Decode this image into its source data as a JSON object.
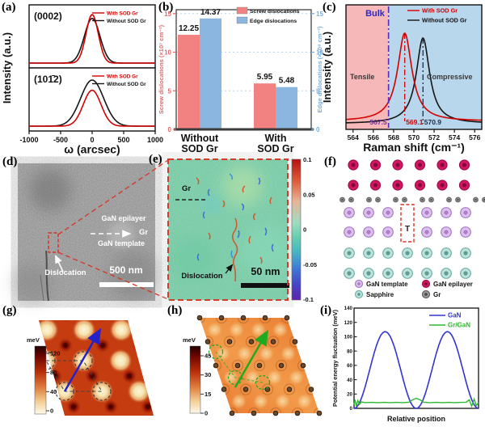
{
  "panel_labels": {
    "a": "(a)",
    "b": "(b)",
    "c": "(c)",
    "d": "(d)",
    "e": "(e)",
    "f": "(f)",
    "g": "(g)",
    "h": "(h)",
    "i": "(i)"
  },
  "panels": {
    "a": {
      "ylabel": "Intensity (a.u.)",
      "xlabel": "ω (arcsec)",
      "xticks": [
        "-1000",
        "-500",
        "0",
        "500",
        "1000"
      ],
      "legend": [
        "With SOD Gr",
        "Without SOD Gr"
      ],
      "subpanels": [
        "(0002)",
        "(101̄2)"
      ]
    },
    "b": {
      "legend": [
        "Screw dislocations",
        "Edge dislocations"
      ],
      "ylabel_left": "Screw dislocations (×10⁷ cm⁻²)",
      "ylabel_right": "Edge dislocations (×10⁸ cm⁻²)",
      "categories": [
        [
          "Without",
          "SOD Gr"
        ],
        [
          "With",
          "SOD Gr"
        ]
      ],
      "yticks": [
        "0",
        "5",
        "10",
        "15"
      ]
    },
    "c": {
      "ylabel": "Intensity (a.u.)",
      "xlabel": "Raman shift (cm⁻¹)",
      "legend": [
        "With SOD Gr",
        "Without SOD Gr"
      ],
      "bulk_label": "Bulk",
      "tensile_label": "Tensile",
      "compressive_label": "Compressive",
      "peak_labels": [
        "567.5",
        "569.1",
        "570.9"
      ],
      "xticks": [
        "564",
        "566",
        "568",
        "570",
        "572",
        "574",
        "576"
      ]
    },
    "d": {
      "labels": {
        "epilayer": "GaN epilayer",
        "gr": "Gr",
        "template": "GaN template",
        "dislocation": "Dislocation",
        "scale": "500 nm"
      }
    },
    "e": {
      "labels": {
        "gr": "Gr",
        "dislocation": "Dislocation",
        "scale": "50 nm"
      },
      "colorbar_ticks": [
        "0.1",
        "0.05",
        "0",
        "-0.05",
        "-0.1"
      ]
    },
    "f": {
      "dislocation_symbol": "T",
      "legend": [
        {
          "key": "template",
          "label": "GaN template"
        },
        {
          "key": "epilayer",
          "label": "GaN epilayer"
        },
        {
          "key": "sapphire",
          "label": "Sapphire"
        },
        {
          "key": "gr",
          "label": "Gr"
        }
      ],
      "colors": {
        "template": {
          "fill": "#dcc2ec",
          "stroke": "#a87cc8",
          "core": "#b07cc6"
        },
        "epilayer": {
          "fill": "#d6145f",
          "stroke": "#98104a",
          "core": "#7e0a37"
        },
        "sapphire": {
          "fill": "#bfe3dc",
          "stroke": "#6fb3a8",
          "core": "#5f9e94"
        },
        "gr": {
          "fill": "#9a9a9a",
          "stroke": "#5f5f5f",
          "core": "#4a4a4a"
        }
      }
    },
    "g": {
      "colorbar_label": "meV",
      "colorbar_ticks": [
        "120",
        "80",
        "40",
        "0"
      ]
    },
    "h": {
      "colorbar_label": "meV",
      "colorbar_ticks": [
        "45",
        "30",
        "15",
        "0"
      ]
    },
    "i": {
      "ylabel": "Potential energy fluctuation (meV)",
      "xlabel": "Relative position",
      "yticks": [
        "0",
        "20",
        "40",
        "60",
        "80",
        "100",
        "120",
        "140"
      ],
      "legend": [
        "GaN",
        "Gr/GaN"
      ]
    }
  },
  "chart_data": [
    {
      "id": "xrd_0002",
      "type": "line",
      "title": "(0002)",
      "xlabel": "ω (arcsec)",
      "ylabel": "Intensity (a.u.)",
      "xlim": [
        -1000,
        1000
      ],
      "xticks": [
        -1000,
        -500,
        0,
        500,
        1000
      ],
      "series": [
        {
          "name": "With SOD Gr",
          "color": "#d40000",
          "peak_center": 0,
          "fwhm_arcsec": 230,
          "relative_height": 1.0
        },
        {
          "name": "Without SOD Gr",
          "color": "#161616",
          "peak_center": 0,
          "fwhm_arcsec": 290,
          "relative_height": 0.92
        }
      ]
    },
    {
      "id": "xrd_1012",
      "type": "line",
      "title": "(101̄2)",
      "xlabel": "ω (arcsec)",
      "ylabel": "Intensity (a.u.)",
      "xlim": [
        -1000,
        1000
      ],
      "xticks": [
        -1000,
        -500,
        0,
        500,
        1000
      ],
      "series": [
        {
          "name": "With SOD Gr",
          "color": "#d40000",
          "peak_center": 0,
          "fwhm_arcsec": 330,
          "relative_height": 0.74
        },
        {
          "name": "Without SOD Gr",
          "color": "#161616",
          "peak_center": 0,
          "fwhm_arcsec": 430,
          "relative_height": 0.95
        }
      ]
    },
    {
      "id": "dislocation_density",
      "type": "bar",
      "categories": [
        "Without SOD Gr",
        "With SOD Gr"
      ],
      "series": [
        {
          "name": "Screw dislocations",
          "color": "#f28282",
          "axis": "left",
          "values": [
            12.25,
            5.95
          ]
        },
        {
          "name": "Edge dislocations",
          "color": "#8ab6e0",
          "axis": "right",
          "values": [
            14.37,
            5.48
          ]
        }
      ],
      "ylabel_left": "Screw dislocations (×10⁷ cm⁻²)",
      "ylabel_right": "Edge dislocations (×10⁸ cm⁻²)",
      "ylim": [
        0,
        15.5
      ],
      "yticks": [
        0,
        5,
        10,
        15
      ]
    },
    {
      "id": "raman",
      "type": "line",
      "xlabel": "Raman shift (cm⁻¹)",
      "ylabel": "Intensity (a.u.)",
      "xlim": [
        563.3,
        576.7
      ],
      "xticks": [
        564,
        566,
        568,
        570,
        572,
        574,
        576
      ],
      "bulk_position": 567.5,
      "regions": [
        {
          "name": "Tensile",
          "color": "#f6b8b8",
          "range": [
            563.3,
            567.5
          ]
        },
        {
          "name": "Compressive",
          "color": "#b8d6ec",
          "range": [
            567.5,
            576.7
          ]
        }
      ],
      "series": [
        {
          "name": "With SOD Gr",
          "color": "#d40000",
          "peak_center": 569.1,
          "fwhm_cm": 1.7
        },
        {
          "name": "Without SOD Gr",
          "color": "#161616",
          "peak_center": 570.9,
          "fwhm_cm": 1.6
        }
      ]
    },
    {
      "id": "strain_map",
      "type": "heatmap",
      "colorbar_ticks": [
        0.1,
        0.05,
        0,
        -0.05,
        -0.1
      ],
      "scale_bar": "50 nm"
    },
    {
      "id": "potential_map_gan",
      "type": "heatmap",
      "colorbar_label": "meV",
      "colorbar_ticks": [
        120,
        80,
        40,
        0
      ]
    },
    {
      "id": "potential_map_gr_gan",
      "type": "heatmap",
      "colorbar_label": "meV",
      "colorbar_ticks": [
        45,
        30,
        15,
        0
      ]
    },
    {
      "id": "potential_fluctuation",
      "type": "line",
      "xlabel": "Relative position",
      "ylabel": "Potential energy fluctuation (meV)",
      "ylim": [
        0,
        140
      ],
      "yticks": [
        0,
        20,
        40,
        60,
        80,
        100,
        120,
        140
      ],
      "series": [
        {
          "name": "GaN",
          "color": "#3434d4",
          "shape": "sin_squared",
          "amplitude": 107,
          "half_period": 0.5
        },
        {
          "name": "Gr/GaN",
          "color": "#2eb82e",
          "points": [
            [
              0,
              5
            ],
            [
              0.008,
              12
            ],
            [
              0.018,
              3
            ],
            [
              0.03,
              11
            ],
            [
              0.045,
              6
            ],
            [
              0.06,
              9
            ],
            [
              0.09,
              8
            ],
            [
              0.14,
              8.4
            ],
            [
              0.19,
              8
            ],
            [
              0.24,
              8.3
            ],
            [
              0.29,
              8
            ],
            [
              0.34,
              8.4
            ],
            [
              0.39,
              8
            ],
            [
              0.44,
              8.6
            ],
            [
              0.47,
              12
            ],
            [
              0.5,
              14
            ],
            [
              0.53,
              12
            ],
            [
              0.56,
              8.6
            ],
            [
              0.61,
              8
            ],
            [
              0.66,
              8.3
            ],
            [
              0.71,
              8
            ],
            [
              0.76,
              8.4
            ],
            [
              0.81,
              8
            ],
            [
              0.86,
              8.3
            ],
            [
              0.9,
              8.6
            ],
            [
              0.925,
              12
            ],
            [
              0.945,
              3
            ],
            [
              0.965,
              13
            ],
            [
              0.982,
              4
            ],
            [
              1,
              8
            ]
          ]
        }
      ]
    }
  ]
}
